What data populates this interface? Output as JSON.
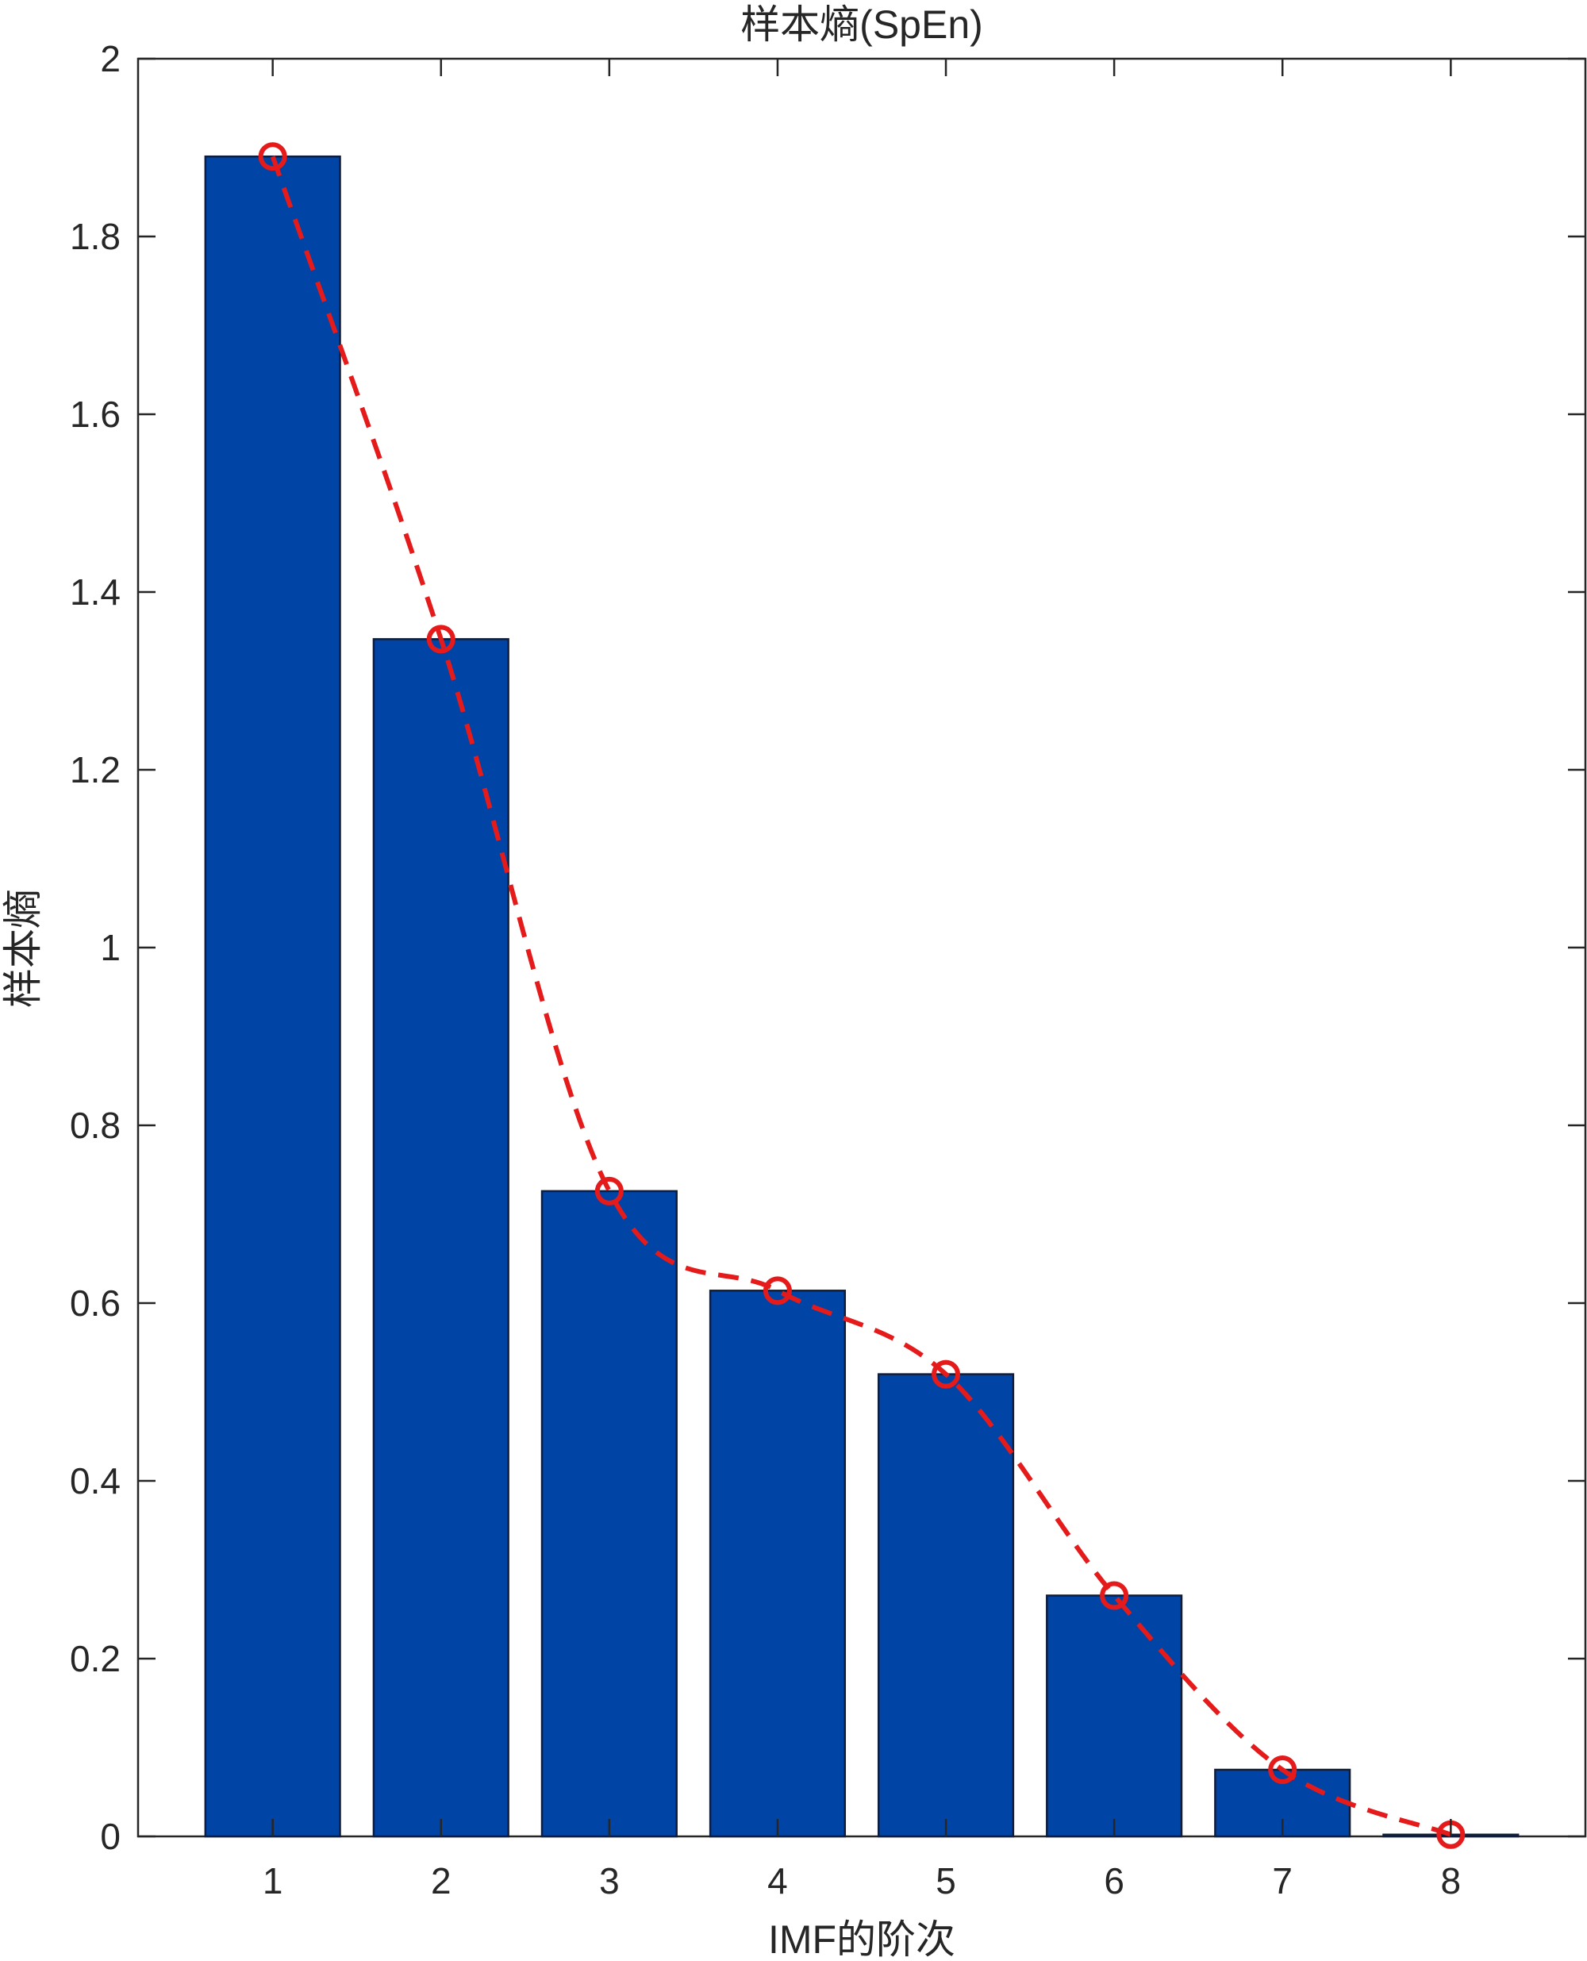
{
  "chart_data": {
    "type": "bar",
    "title": "样本熵(SpEn)",
    "xlabel": "IMF的阶次",
    "ylabel": "样本熵",
    "categories": [
      "1",
      "2",
      "3",
      "4",
      "5",
      "6",
      "7",
      "8"
    ],
    "values": [
      1.89,
      1.347,
      0.726,
      0.614,
      0.52,
      0.271,
      0.075,
      0.002
    ],
    "ylim": [
      0,
      2
    ],
    "xlim": [
      0.2,
      8.8
    ],
    "yticks": [
      "0",
      "0.2",
      "0.4",
      "0.6",
      "0.8",
      "1",
      "1.2",
      "1.4",
      "1.6",
      "1.8",
      "2"
    ],
    "grid": false,
    "colors": {
      "bar_fill": "#0044A6",
      "bar_edge": "#0f1d3a",
      "line": "#E51A1A",
      "axis": "#262626"
    },
    "overlay_line": {
      "style": "dashed",
      "marker": "open-circle",
      "values": [
        1.89,
        1.347,
        0.726,
        0.614,
        0.52,
        0.271,
        0.075,
        0.002
      ]
    }
  }
}
